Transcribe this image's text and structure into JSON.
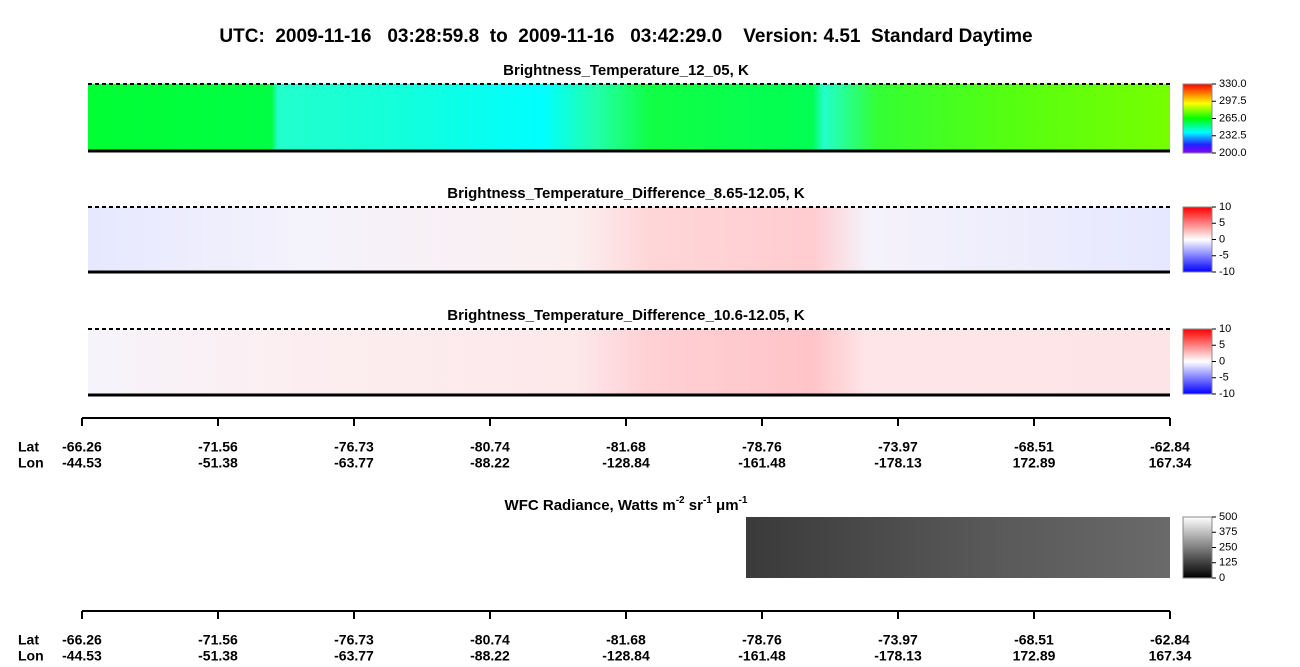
{
  "title": "UTC:  2009-11-16   03:28:59.8  to  2009-11-16   03:42:29.0    Version: 4.51  Standard Daytime",
  "panels": [
    {
      "title": "Brightness_Temperature_12_05, K",
      "colorbar_ticks": [
        {
          "value": 330,
          "label": "330.0"
        },
        {
          "value": 297.5,
          "label": "297.5"
        },
        {
          "value": 265,
          "label": "265.0"
        },
        {
          "value": 232.5,
          "label": "232.5"
        },
        {
          "value": 200,
          "label": "200.0"
        }
      ]
    },
    {
      "title": "Brightness_Temperature_Difference_8.65-12.05, K",
      "colorbar_ticks": [
        10,
        5,
        0,
        -5,
        -10
      ]
    },
    {
      "title": "Brightness_Temperature_Difference_10.6-12.05, K",
      "colorbar_ticks": [
        10,
        5,
        0,
        -5,
        -10
      ]
    },
    {
      "title_parts": [
        {
          "text": "WFC Radiance, Watts m"
        },
        {
          "sup": "-2"
        },
        {
          "text": " sr"
        },
        {
          "sup": "-1"
        },
        {
          "text": " μm"
        },
        {
          "sup": "-1"
        }
      ],
      "colorbar_ticks": [
        500,
        375,
        250,
        125,
        0
      ]
    }
  ],
  "axes": [
    {
      "lat_label": "Lat",
      "lon_label": "Lon",
      "lat": [
        -66.26,
        -71.56,
        -76.73,
        -80.74,
        -81.68,
        -78.76,
        -73.97,
        -68.51,
        -62.84
      ],
      "lon": [
        -44.53,
        -51.38,
        -63.77,
        -88.22,
        -128.84,
        -161.48,
        -178.13,
        172.89,
        167.34
      ]
    },
    {
      "lat_label": "Lat",
      "lon_label": "Lon",
      "lat": [
        -66.26,
        -71.56,
        -76.73,
        -80.74,
        -81.68,
        -78.76,
        -73.97,
        -68.51,
        -62.84
      ],
      "lon": [
        -44.53,
        -51.38,
        -63.77,
        -88.22,
        -128.84,
        -161.48,
        -178.13,
        172.89,
        167.34
      ]
    }
  ]
}
